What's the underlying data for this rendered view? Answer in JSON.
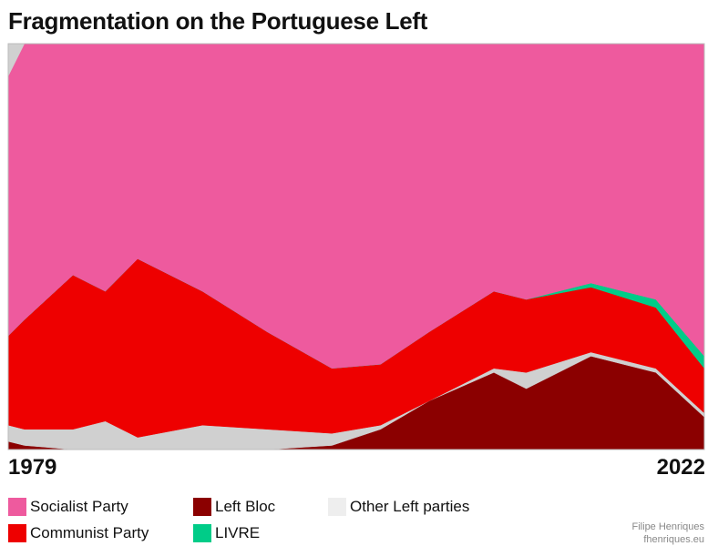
{
  "title": "Fragmentation on the Portuguese Left",
  "x_start_label": "1979",
  "x_end_label": "2022",
  "credit": {
    "author": "Filipe Henriques",
    "site": "fhenriques.eu"
  },
  "chart_data": {
    "type": "area",
    "stacked": true,
    "normalized": true,
    "x": [
      1979,
      1980,
      1983,
      1985,
      1987,
      1991,
      1995,
      1999,
      2002,
      2005,
      2009,
      2011,
      2015,
      2019,
      2022
    ],
    "x_axis_labels": [
      "1979",
      "2022"
    ],
    "ylim": [
      0,
      100
    ],
    "grid": false,
    "legend_position": "bottom",
    "series": [
      {
        "name": "Left Bloc",
        "color": "#8b0000",
        "values": [
          2,
          1,
          0,
          0,
          0,
          0,
          0,
          1,
          5,
          12,
          19,
          15,
          23,
          19,
          8
        ]
      },
      {
        "name": "Other Left parties",
        "color": "#d0d0d0",
        "values": [
          4,
          4,
          5,
          7,
          3,
          6,
          5,
          3,
          1,
          0,
          1,
          4,
          1,
          1,
          1
        ]
      },
      {
        "name": "Communist Party",
        "color": "#ee0000",
        "values": [
          22,
          27,
          38,
          32,
          44,
          33,
          24,
          16,
          15,
          17,
          19,
          18,
          16,
          15,
          11
        ]
      },
      {
        "name": "LIVRE",
        "color": "#00cc88",
        "values": [
          0,
          0,
          0,
          0,
          0,
          0,
          0,
          0,
          0,
          0,
          0,
          0,
          1,
          2,
          3
        ]
      },
      {
        "name": "Socialist Party",
        "color": "#ee5a9e",
        "values": [
          64,
          68,
          57,
          61,
          53,
          61,
          71,
          80,
          79,
          71,
          61,
          63,
          59,
          63,
          77
        ]
      },
      {
        "name": "Other Left parties",
        "color": "#d0d0d0",
        "values": [
          8,
          0,
          0,
          0,
          0,
          0,
          0,
          0,
          0,
          0,
          0,
          0,
          0,
          0,
          0
        ]
      }
    ]
  },
  "legend": [
    {
      "label": "Socialist Party",
      "color": "#ee5a9e"
    },
    {
      "label": "Communist Party",
      "color": "#ee0000"
    },
    {
      "label": "Left Bloc",
      "color": "#8b0000"
    },
    {
      "label": "LIVRE",
      "color": "#00cc88"
    },
    {
      "label": "Other Left parties",
      "color": "#eeeeee"
    }
  ]
}
